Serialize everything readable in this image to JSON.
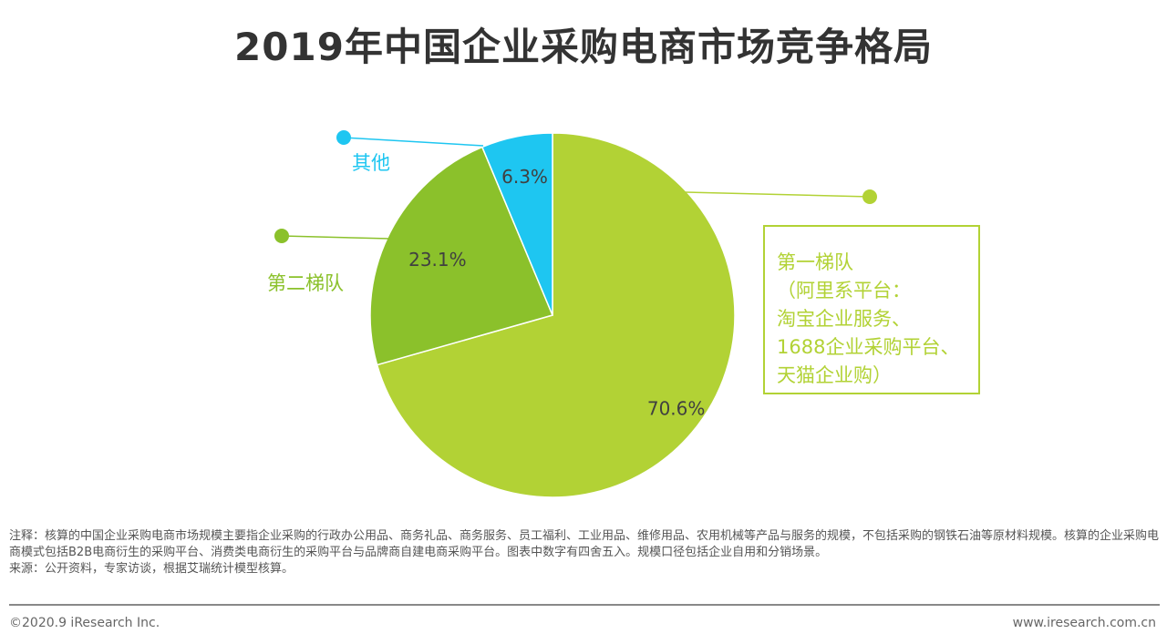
{
  "title": "2019年中国企业采购电商市场竞争格局",
  "chart_data": {
    "type": "pie",
    "title": "2019年中国企业采购电商市场竞争格局",
    "slices": [
      {
        "name": "第一梯队",
        "value": 70.6,
        "label": "70.6%",
        "color": "#B2D235"
      },
      {
        "name": "第二梯队",
        "value": 23.1,
        "label": "23.1%",
        "color": "#8BC12B"
      },
      {
        "name": "其他",
        "value": 6.3,
        "label": "6.3%",
        "color": "#1EC6F1"
      }
    ],
    "start_angle": "12 o'clock",
    "direction": "clockwise"
  },
  "callouts": {
    "tier1_lines": [
      "第一梯队",
      "（阿里系平台：",
      "淘宝企业服务、",
      "1688企业采购平台、",
      "天猫企业购）"
    ],
    "tier2": "第二梯队",
    "other": "其他"
  },
  "note": "注释：核算的中国企业采购电商市场规模主要指企业采购的行政办公用品、商务礼品、商务服务、员工福利、工业用品、维修用品、农用机械等产品与服务的规模，不包括采购的钢铁石油等原材料规模。核算的企业采购电商模式包括B2B电商衍生的采购平台、消费类电商衍生的采购平台与品牌商自建电商采购平台。图表中数字有四舍五入。规模口径包括企业自用和分销场景。",
  "source": "来源：公开资料，专家访谈，根据艾瑞统计模型核算。",
  "footer": {
    "copyright": "©2020.9 iResearch Inc.",
    "website": "www.iresearch.com.cn"
  }
}
